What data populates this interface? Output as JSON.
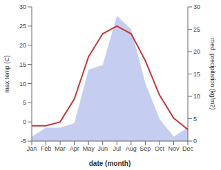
{
  "chart_data": {
    "type": "line",
    "xlabel": "date (month)",
    "ylabel": "max temp (C)",
    "y2label": "med. precipitation (kg/m2)",
    "categories": [
      "Jan",
      "Feb",
      "Mar",
      "Apr",
      "May",
      "Jun",
      "Jul",
      "Aug",
      "Sep",
      "Oct",
      "Nov",
      "Dec"
    ],
    "series": [
      {
        "type": "area",
        "axis": "y2",
        "color": "#c5cef0",
        "values": [
          1,
          3,
          3,
          4,
          16,
          17,
          28,
          25,
          13,
          5,
          1,
          3
        ]
      },
      {
        "type": "line",
        "color": "#c0393b",
        "values": [
          -1,
          -1,
          0,
          6,
          17,
          23,
          25,
          23,
          16,
          7,
          1,
          -2
        ]
      }
    ],
    "ylim": [
      -5,
      30
    ],
    "yticks": [
      -5,
      0,
      5,
      10,
      15,
      20,
      25,
      30
    ],
    "y2lim": [
      0,
      30
    ],
    "y2ticks": [
      0,
      5,
      10,
      15,
      20,
      25,
      30
    ],
    "grid": false
  }
}
